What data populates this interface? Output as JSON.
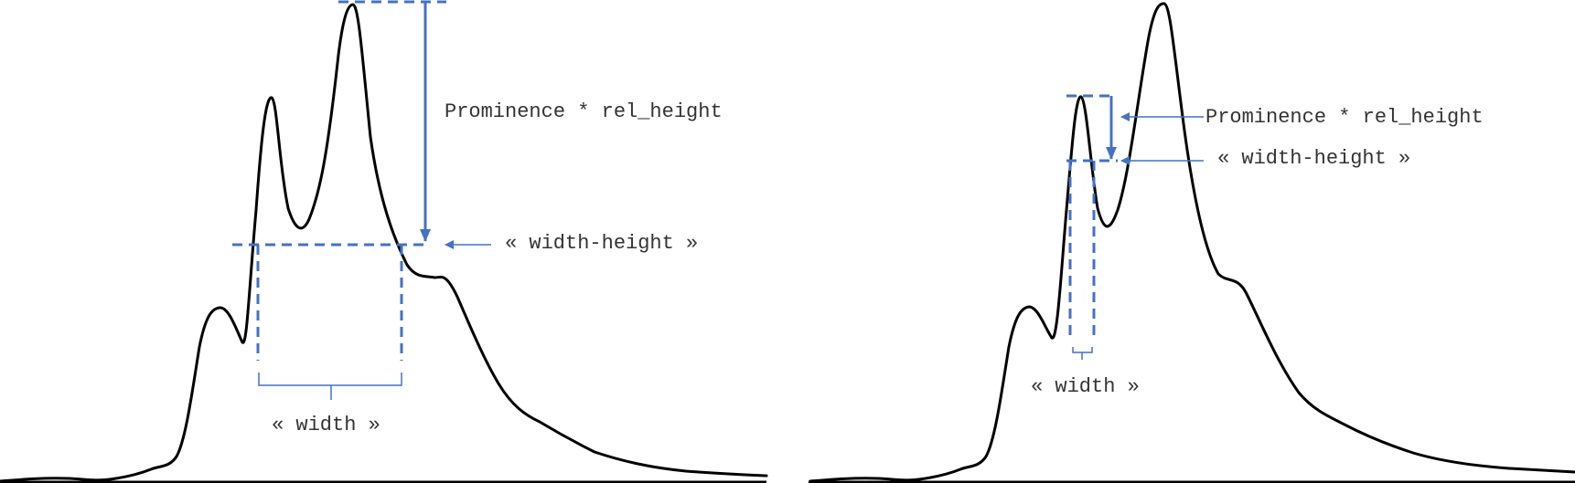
{
  "colors": {
    "curve": "#000000",
    "annotation": "#4472C4",
    "text": "#333333"
  },
  "left_panel": {
    "prominence_label": "Prominence * rel_height",
    "width_height_label": "« width-height »",
    "width_label": "« width »"
  },
  "right_panel": {
    "prominence_label": "Prominence * rel_height",
    "width_height_label": "« width-height »",
    "width_label": "« width »"
  }
}
